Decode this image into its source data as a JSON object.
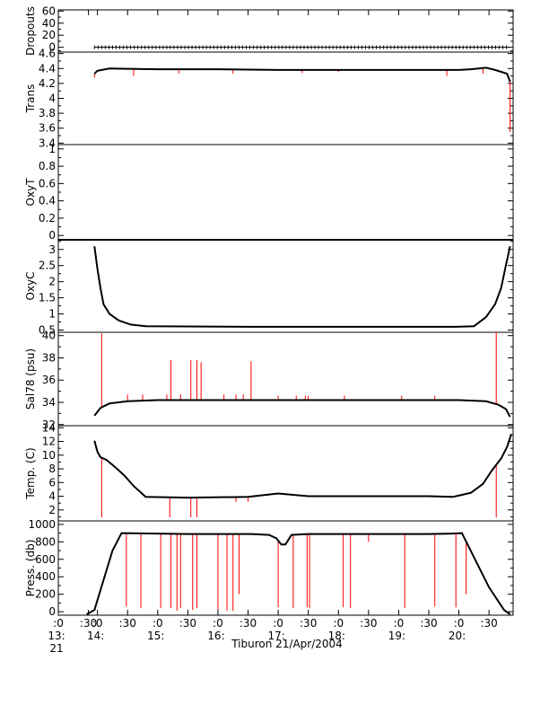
{
  "colors": {
    "frame": "#000000",
    "trace": "#000000",
    "spike": "#ff0000"
  },
  "time_axis": {
    "range": [
      13.35,
      20.9
    ],
    "ticks": [
      {
        "t": 13.35,
        "top": ":0",
        "mid": "13:",
        "bot": "21"
      },
      {
        "t": 13.85,
        "top": ":30",
        "mid": "",
        "bot": ""
      },
      {
        "t": 14.0,
        "top": ":0",
        "mid": "14:",
        "bot": ""
      },
      {
        "t": 14.5,
        "top": ":30",
        "mid": "",
        "bot": ""
      },
      {
        "t": 15.0,
        "top": ":0",
        "mid": "15:",
        "bot": ""
      },
      {
        "t": 15.5,
        "top": ":30",
        "mid": "",
        "bot": ""
      },
      {
        "t": 16.0,
        "top": ":0",
        "mid": "16:",
        "bot": ""
      },
      {
        "t": 16.5,
        "top": ":30",
        "mid": "",
        "bot": ""
      },
      {
        "t": 17.0,
        "top": ":0",
        "mid": "17:",
        "bot": ""
      },
      {
        "t": 17.5,
        "top": ":30",
        "mid": "",
        "bot": ""
      },
      {
        "t": 18.0,
        "top": ":0",
        "mid": "18:",
        "bot": ""
      },
      {
        "t": 18.5,
        "top": ":30",
        "mid": "",
        "bot": ""
      },
      {
        "t": 19.0,
        "top": ":0",
        "mid": "19:",
        "bot": ""
      },
      {
        "t": 19.5,
        "top": ":30",
        "mid": "",
        "bot": ""
      },
      {
        "t": 20.0,
        "top": ":0",
        "mid": "20:",
        "bot": ""
      },
      {
        "t": 20.5,
        "top": ":30",
        "mid": "",
        "bot": ""
      }
    ],
    "caption": "Tiburon 21/Apr/2004"
  },
  "chart_data": [
    {
      "type": "line",
      "ylabel": "Dropouts",
      "ylim": [
        -8,
        62
      ],
      "yticks": [
        0,
        20,
        40,
        60
      ],
      "minor_ticks": [
        10,
        30,
        50
      ],
      "extra_ticks": [
        -6
      ],
      "x": [
        13.95,
        20.83
      ],
      "y": [
        0,
        0
      ],
      "line": "dotted-marker",
      "spikes": []
    },
    {
      "type": "line",
      "ylabel": "Trans",
      "ylim": [
        3.38,
        4.62
      ],
      "yticks": [
        3.4,
        3.6,
        3.8,
        4.0,
        4.2,
        4.4,
        4.6
      ],
      "minor_ticks": [
        3.5,
        3.7,
        3.9,
        4.1,
        4.3,
        4.5
      ],
      "extra_ticks": [],
      "x": [
        13.95,
        14.0,
        14.2,
        15.0,
        16.0,
        17.0,
        18.0,
        19.0,
        20.0,
        20.2,
        20.45,
        20.6,
        20.8,
        20.85
      ],
      "y": [
        4.33,
        4.37,
        4.4,
        4.39,
        4.39,
        4.38,
        4.38,
        4.38,
        4.38,
        4.39,
        4.41,
        4.38,
        4.33,
        4.22
      ],
      "spikes": [
        [
          13.95,
          4.28
        ],
        [
          14.6,
          4.3
        ],
        [
          15.35,
          4.33
        ],
        [
          16.25,
          4.33
        ],
        [
          17.4,
          4.34
        ],
        [
          18.0,
          4.35
        ],
        [
          19.8,
          4.3
        ],
        [
          20.4,
          4.33
        ],
        [
          20.85,
          3.55
        ]
      ]
    },
    {
      "type": "line",
      "ylabel": "OxyT",
      "ylim": [
        -0.05,
        1.05
      ],
      "yticks": [
        0.0,
        0.2,
        0.4,
        0.6,
        0.8,
        1.0
      ],
      "minor_ticks": [
        0.1,
        0.3,
        0.5,
        0.7,
        0.9
      ],
      "extra_ticks": [
        -0.05
      ],
      "x": [
        13.35,
        20.9
      ],
      "y": [
        -0.05,
        -0.05
      ],
      "line": "solid",
      "spikes": []
    },
    {
      "type": "line",
      "ylabel": "OxyC",
      "ylim": [
        0.43,
        3.3
      ],
      "yticks": [
        0.5,
        1.0,
        1.5,
        2.0,
        2.5,
        3.0
      ],
      "minor_ticks": [
        0.75,
        1.25,
        1.75,
        2.25,
        2.75,
        3.25
      ],
      "extra_ticks": [],
      "x": [
        13.95,
        14.0,
        14.05,
        14.1,
        14.2,
        14.35,
        14.55,
        14.8,
        15.5,
        16.5,
        17.5,
        18.5,
        19.5,
        19.95,
        20.25,
        20.45,
        20.6,
        20.7,
        20.78,
        20.85
      ],
      "y": [
        3.1,
        2.4,
        1.8,
        1.3,
        1.0,
        0.8,
        0.67,
        0.62,
        0.61,
        0.6,
        0.6,
        0.6,
        0.6,
        0.6,
        0.62,
        0.9,
        1.3,
        1.8,
        2.5,
        3.1
      ],
      "spikes": []
    },
    {
      "type": "line",
      "ylabel": "Sal78 (psu)",
      "ylim": [
        31.9,
        40.3
      ],
      "yticks": [
        32,
        34,
        36,
        38,
        40
      ],
      "minor_ticks": [
        33,
        35,
        37,
        39
      ],
      "extra_ticks": [],
      "x": [
        13.95,
        14.05,
        14.2,
        14.5,
        15.0,
        16.0,
        17.0,
        18.0,
        19.0,
        20.0,
        20.45,
        20.65,
        20.78,
        20.85
      ],
      "y": [
        32.8,
        33.5,
        33.9,
        34.1,
        34.2,
        34.2,
        34.2,
        34.2,
        34.2,
        34.2,
        34.1,
        33.8,
        33.4,
        32.7
      ],
      "spikes": [
        [
          14.07,
          40.2
        ],
        [
          14.5,
          34.7
        ],
        [
          14.75,
          34.7
        ],
        [
          15.15,
          34.7
        ],
        [
          15.22,
          37.8
        ],
        [
          15.38,
          34.7
        ],
        [
          15.55,
          37.8
        ],
        [
          15.65,
          37.8
        ],
        [
          15.72,
          37.6
        ],
        [
          16.1,
          34.7
        ],
        [
          16.3,
          34.7
        ],
        [
          16.42,
          34.7
        ],
        [
          16.55,
          37.7
        ],
        [
          17.0,
          34.6
        ],
        [
          17.3,
          34.6
        ],
        [
          17.45,
          34.6
        ],
        [
          17.5,
          34.6
        ],
        [
          18.1,
          34.6
        ],
        [
          19.05,
          34.6
        ],
        [
          19.6,
          34.6
        ],
        [
          20.62,
          40.3
        ]
      ]
    },
    {
      "type": "line",
      "ylabel": "Temp. (C)",
      "ylim": [
        0.4,
        14.3
      ],
      "yticks": [
        2,
        4,
        6,
        8,
        10,
        12,
        14
      ],
      "minor_ticks": [
        1,
        3,
        5,
        7,
        9,
        11,
        13
      ],
      "extra_ticks": [],
      "x": [
        13.95,
        14.0,
        14.05,
        14.15,
        14.3,
        14.45,
        14.6,
        14.8,
        15.5,
        16.5,
        17.0,
        17.5,
        18.5,
        19.5,
        19.9,
        20.2,
        20.4,
        20.55,
        20.7,
        20.8,
        20.87
      ],
      "y": [
        12.1,
        10.5,
        9.7,
        9.3,
        8.2,
        7.0,
        5.5,
        3.9,
        3.8,
        3.9,
        4.4,
        4.0,
        4.0,
        4.0,
        3.9,
        4.5,
        5.8,
        7.8,
        9.5,
        11.2,
        13.1
      ],
      "spikes": [
        [
          14.07,
          0.9
        ],
        [
          15.2,
          0.9
        ],
        [
          15.55,
          0.9
        ],
        [
          15.65,
          0.9
        ],
        [
          16.3,
          3.2
        ],
        [
          16.5,
          3.2
        ],
        [
          20.62,
          0.9
        ]
      ]
    },
    {
      "type": "line",
      "ylabel": "Press. (db)",
      "ylim": [
        -40,
        1040
      ],
      "yticks": [
        0,
        200,
        400,
        600,
        800,
        1000
      ],
      "minor_ticks": [
        100,
        300,
        500,
        700,
        900
      ],
      "extra_ticks": [],
      "x": [
        13.82,
        13.95,
        14.25,
        14.4,
        15.5,
        16.55,
        16.85,
        16.97,
        17.05,
        17.12,
        17.22,
        17.5,
        18.5,
        19.5,
        19.9,
        20.05,
        20.5,
        20.75,
        20.85
      ],
      "y": [
        -30,
        20,
        700,
        900,
        890,
        890,
        880,
        840,
        770,
        770,
        880,
        890,
        890,
        890,
        895,
        900,
        280,
        20,
        -30
      ],
      "spikes": [
        [
          14.48,
          60
        ],
        [
          14.72,
          40
        ],
        [
          15.05,
          40
        ],
        [
          15.22,
          40
        ],
        [
          15.32,
          10
        ],
        [
          15.38,
          40
        ],
        [
          15.58,
          20
        ],
        [
          15.65,
          40
        ],
        [
          16.0,
          10
        ],
        [
          16.15,
          10
        ],
        [
          16.25,
          10
        ],
        [
          16.35,
          200
        ],
        [
          17.0,
          50
        ],
        [
          17.25,
          40
        ],
        [
          17.48,
          50
        ],
        [
          17.52,
          40
        ],
        [
          18.08,
          50
        ],
        [
          18.2,
          40
        ],
        [
          18.5,
          800
        ],
        [
          19.1,
          40
        ],
        [
          19.6,
          60
        ],
        [
          19.95,
          50
        ],
        [
          20.12,
          200
        ]
      ]
    }
  ]
}
